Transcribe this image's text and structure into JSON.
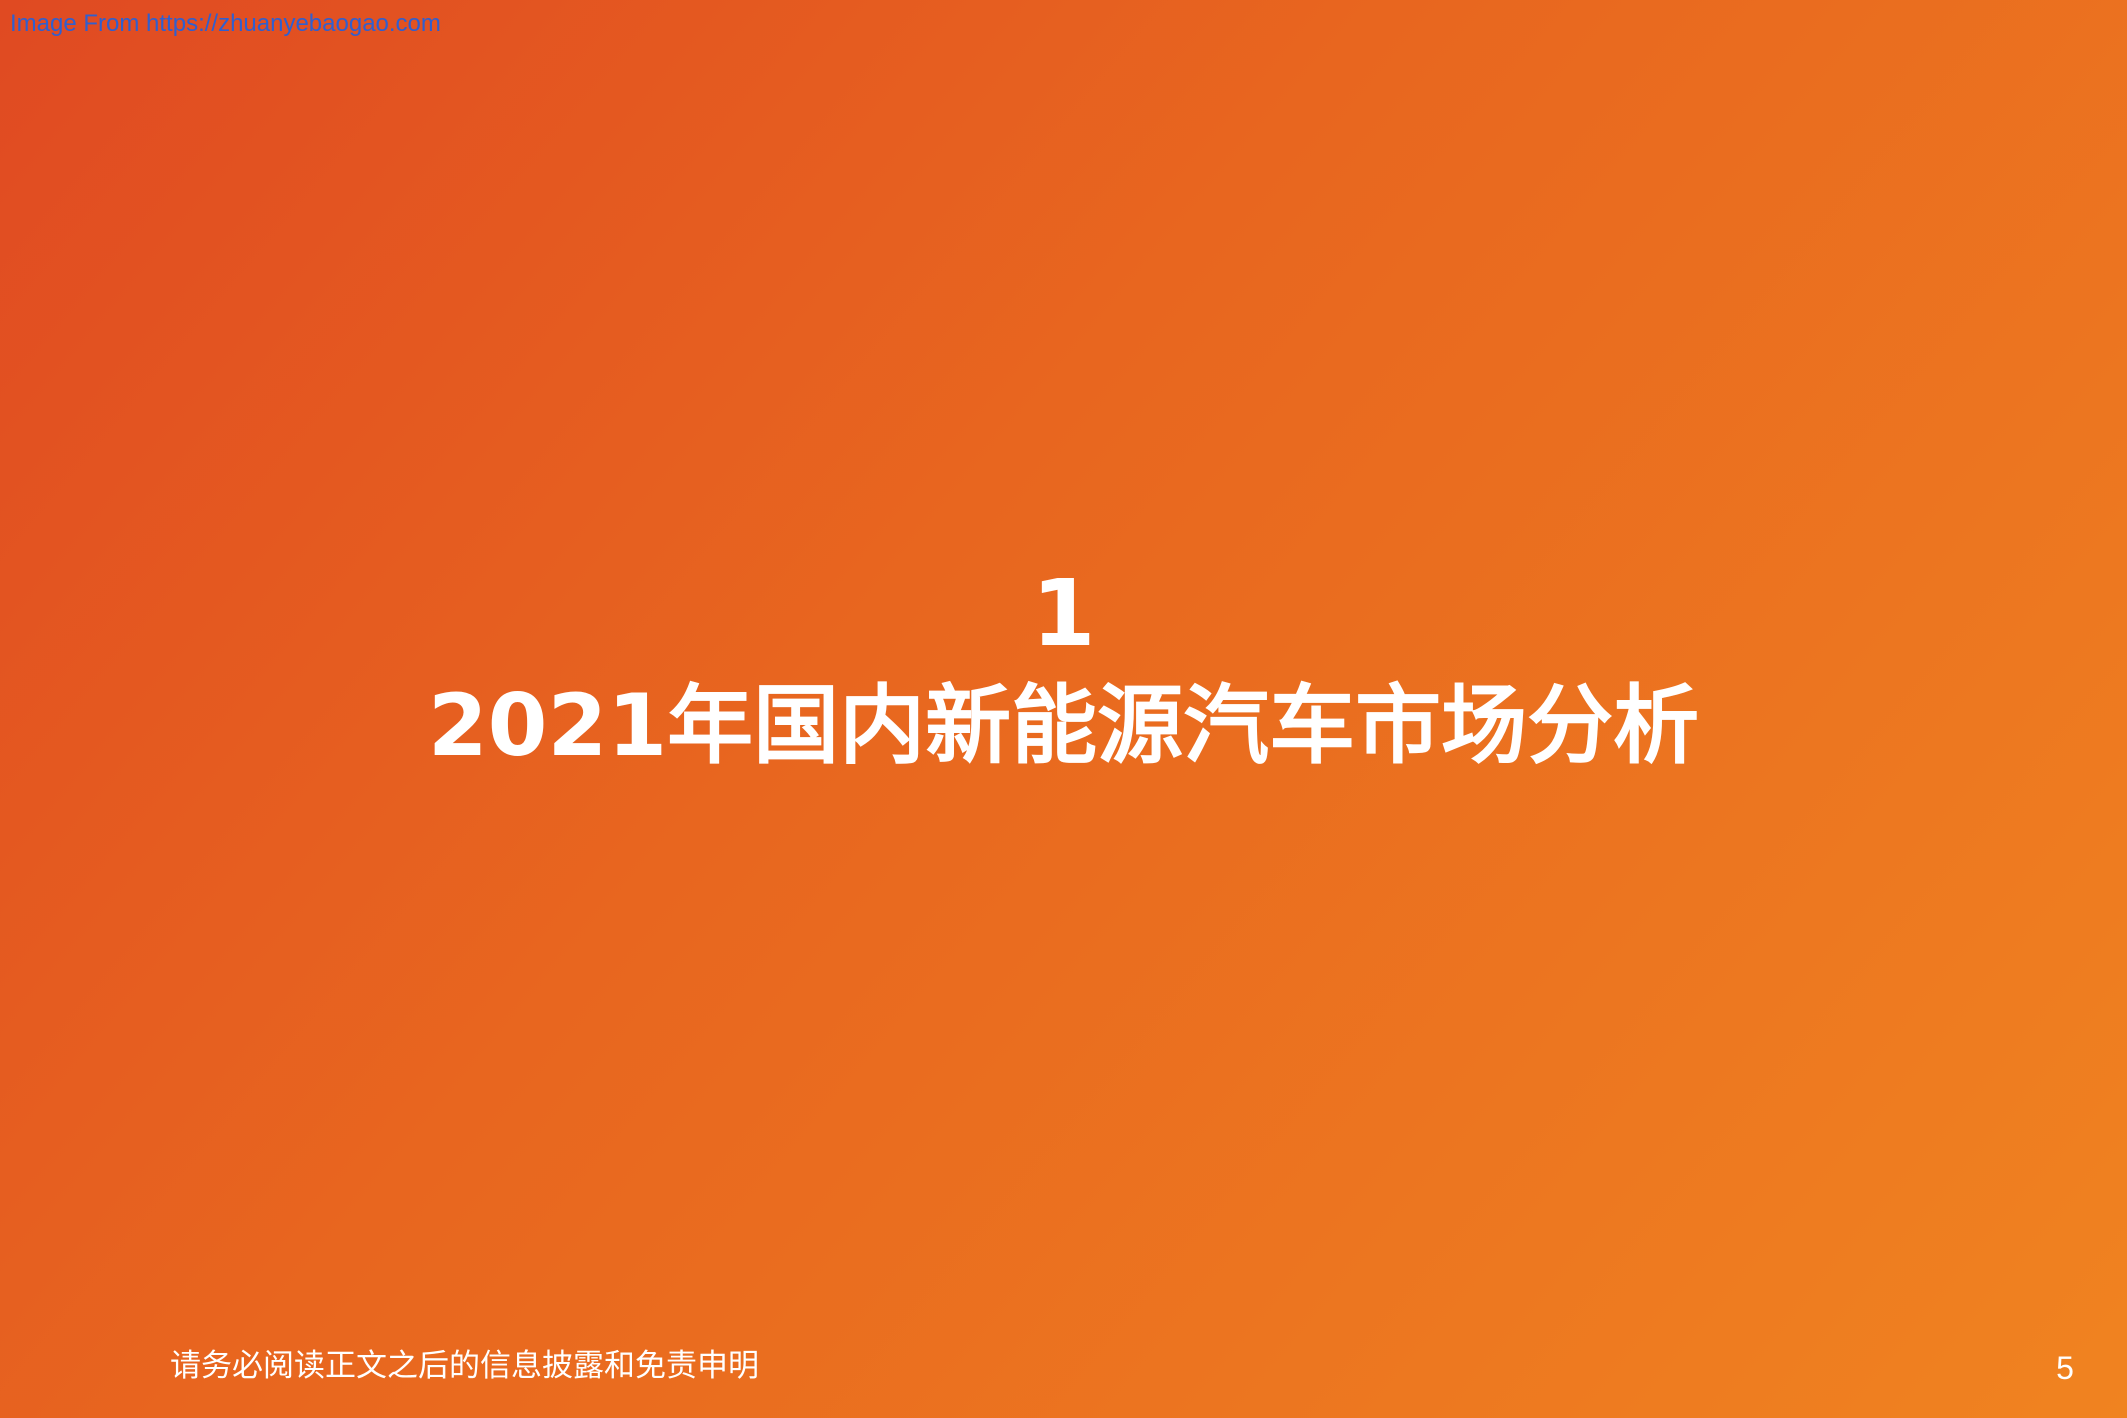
{
  "watermark": "Image From https://zhuanyebaogao.com",
  "section": {
    "number": "1",
    "title": "2021年国内新能源汽车市场分析"
  },
  "footer": {
    "disclaimer": "请务必阅读正文之后的信息披露和免责申明",
    "page_number": "5"
  },
  "colors": {
    "gradient_start": "#e04a22",
    "gradient_end": "#f08320",
    "text": "#ffffff",
    "watermark": "#2f5fd0"
  }
}
